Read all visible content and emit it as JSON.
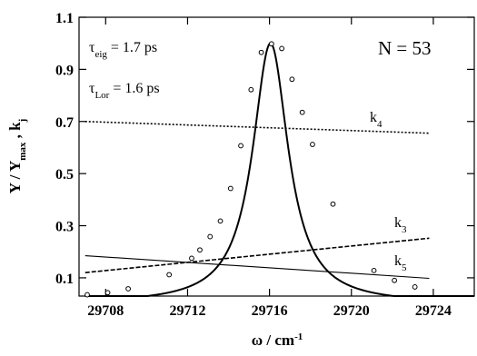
{
  "chart_data": {
    "type": "line",
    "xlabel": "ω  /  cm",
    "xlabel_sup": "-1",
    "ylabel": "Y / Y",
    "ylabel_sub": "max",
    "ylabel_tail": "  ,  k",
    "ylabel_tail_sub": "j",
    "xlim": [
      29706.7,
      29726.0
    ],
    "ylim": [
      0.03,
      1.1
    ],
    "x_ticks": [
      29708,
      29712,
      29716,
      29720,
      29724
    ],
    "y_ticks": [
      0.1,
      0.3,
      0.5,
      0.7,
      0.9,
      1.1
    ],
    "grid": false,
    "annotations": {
      "tau_eig": {
        "pre": "τ",
        "sub": "eig",
        "post": " = 1.7 ps"
      },
      "tau_lor": {
        "pre": "τ",
        "sub": "Lor",
        "post": " = 1.6 ps"
      },
      "n_label": "N = 53"
    },
    "lorentzian_fit": {
      "center": 29716.05,
      "peak": 1.0,
      "half_width": 1.06,
      "baseline": 0.0,
      "style": "solid"
    },
    "points": {
      "x": [
        29707.1,
        29708.1,
        29709.1,
        29711.1,
        29712.2,
        29712.6,
        29713.1,
        29713.6,
        29714.1,
        29714.6,
        29715.1,
        29715.6,
        29716.1,
        29716.6,
        29717.1,
        29717.6,
        29718.1,
        29719.1,
        29721.1,
        29722.1,
        29723.1
      ],
      "y": [
        0.035,
        0.043,
        0.058,
        0.112,
        0.175,
        0.207,
        0.258,
        0.318,
        0.443,
        0.607,
        0.822,
        0.965,
        0.998,
        0.98,
        0.862,
        0.735,
        0.612,
        0.383,
        0.128,
        0.09,
        0.065
      ]
    },
    "series": [
      {
        "name": "k4",
        "label": "k",
        "sub": "4",
        "style": "dotted",
        "x": [
          29707.0,
          29723.8
        ],
        "y": [
          0.7,
          0.655
        ]
      },
      {
        "name": "k3",
        "label": "k",
        "sub": "3",
        "style": "dashed",
        "x": [
          29707.0,
          29723.8
        ],
        "y": [
          0.12,
          0.252
        ]
      },
      {
        "name": "k5",
        "label": "k",
        "sub": "5",
        "style": "solid-thin",
        "x": [
          29707.0,
          29723.8
        ],
        "y": [
          0.185,
          0.098
        ]
      }
    ]
  }
}
